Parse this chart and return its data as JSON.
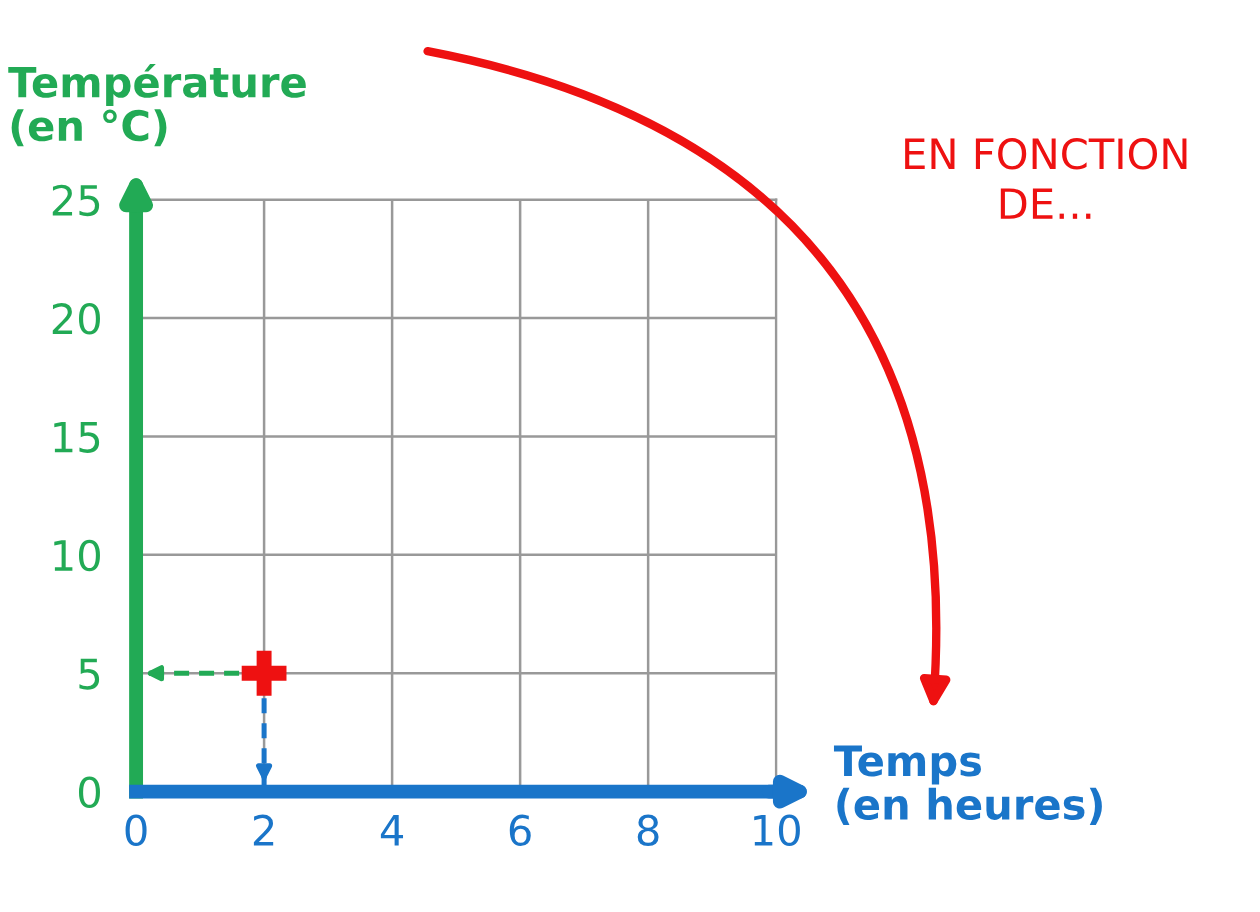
{
  "chart_data": {
    "type": "scatter",
    "x": [
      2
    ],
    "values": [
      5
    ],
    "color": "#ee1111",
    "marker": "cross",
    "xlim": [
      0,
      10
    ],
    "ylim": [
      0,
      25
    ],
    "xticks": [
      0,
      2,
      4,
      6,
      8,
      10
    ],
    "yticks": [
      0,
      5,
      10,
      15,
      20,
      25
    ],
    "xlabel": "Temps\n(en heures)",
    "ylabel": "Température\n(en °C)",
    "annotations": [
      "EN FONCTION\nDE..."
    ],
    "ref_lines": [
      {
        "axis": "y",
        "value": 5,
        "color": "#22aa55",
        "line_style": "dashed"
      },
      {
        "axis": "x",
        "value": 2,
        "color": "#1a75c9",
        "line_style": "dashed"
      }
    ],
    "grid": true
  }
}
